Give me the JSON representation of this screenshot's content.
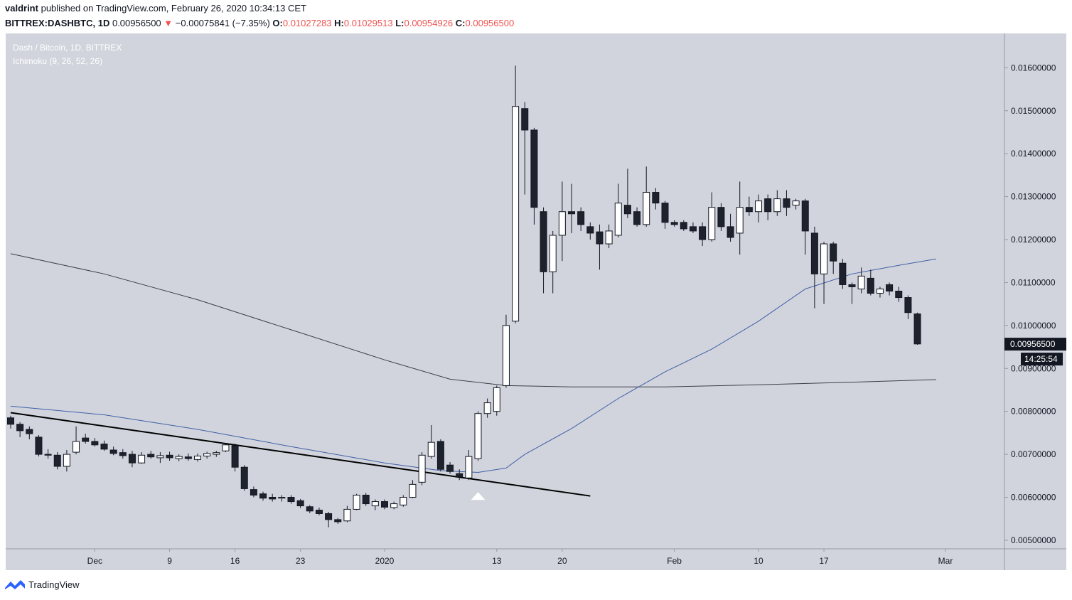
{
  "header": {
    "user": "valdrint",
    "published": "published on TradingView.com, February 26, 2020 10:34:13 CET"
  },
  "ohlc": {
    "symbol": "BITTREX:DASHBTC, 1D",
    "last": "0.00956500",
    "change": "−0.00075841 (−7.35%)",
    "o_label": "O:",
    "o": "0.01027283",
    "h_label": "H:",
    "h": "0.01029513",
    "l_label": "L:",
    "l": "0.00954926",
    "c_label": "C:",
    "c": "0.00956500"
  },
  "footer": {
    "brand": "TradingView",
    "logo_icon": "tradingview-logo-icon"
  },
  "colors": {
    "background": "#d1d4dc",
    "up_body": "#ffffff",
    "down_body": "#1e222d",
    "wick": "#131722",
    "ma_blue": "#3f5fa6",
    "ma_dark": "#3b3f48",
    "arrow": "#ffffff"
  },
  "chart_data": {
    "type": "candlestick",
    "title": "Dash / Bitcoin, 1D, BITTREX",
    "subtitle": "Ichimoku (9, 26, 52, 26)",
    "ylim": [
      0.0048,
      0.0168
    ],
    "y_ticks": [
      0.005,
      0.006,
      0.007,
      0.008,
      0.009,
      0.01,
      0.011,
      0.012,
      0.013,
      0.014,
      0.015,
      0.016
    ],
    "y_tick_labels": [
      "0.00500000",
      "0.00600000",
      "0.00700000",
      "0.00800000",
      "0.00900000",
      "0.01000000",
      "0.01100000",
      "0.01200000",
      "0.01300000",
      "0.01400000",
      "0.01500000",
      "0.01600000"
    ],
    "x_ticks": [
      {
        "label": "Dec",
        "day": 9
      },
      {
        "label": "9",
        "day": 17
      },
      {
        "label": "16",
        "day": 24
      },
      {
        "label": "23",
        "day": 31
      },
      {
        "label": "2020",
        "day": 40
      },
      {
        "label": "13",
        "day": 52
      },
      {
        "label": "20",
        "day": 59
      },
      {
        "label": "Feb",
        "day": 71
      },
      {
        "label": "10",
        "day": 80
      },
      {
        "label": "17",
        "day": 87
      },
      {
        "label": "Mar",
        "day": 100
      }
    ],
    "last_price_label": "0.00956500",
    "countdown_label": "14:25:54",
    "candles": [
      {
        "o": 0.00785,
        "h": 0.0079,
        "l": 0.0076,
        "c": 0.0077
      },
      {
        "o": 0.0077,
        "h": 0.00775,
        "l": 0.0074,
        "c": 0.00755
      },
      {
        "o": 0.00758,
        "h": 0.00765,
        "l": 0.00735,
        "c": 0.00748
      },
      {
        "o": 0.0074,
        "h": 0.00745,
        "l": 0.00695,
        "c": 0.007
      },
      {
        "o": 0.007,
        "h": 0.00712,
        "l": 0.0069,
        "c": 0.00698
      },
      {
        "o": 0.00698,
        "h": 0.00705,
        "l": 0.00665,
        "c": 0.00672
      },
      {
        "o": 0.00672,
        "h": 0.0071,
        "l": 0.0066,
        "c": 0.007
      },
      {
        "o": 0.00705,
        "h": 0.00765,
        "l": 0.007,
        "c": 0.0073
      },
      {
        "o": 0.00738,
        "h": 0.00748,
        "l": 0.00725,
        "c": 0.0073
      },
      {
        "o": 0.0073,
        "h": 0.00738,
        "l": 0.00718,
        "c": 0.00722
      },
      {
        "o": 0.00724,
        "h": 0.00732,
        "l": 0.00708,
        "c": 0.00712
      },
      {
        "o": 0.0071,
        "h": 0.00718,
        "l": 0.00698,
        "c": 0.00702
      },
      {
        "o": 0.00704,
        "h": 0.00712,
        "l": 0.0069,
        "c": 0.00697
      },
      {
        "o": 0.007,
        "h": 0.00708,
        "l": 0.0067,
        "c": 0.0068
      },
      {
        "o": 0.0068,
        "h": 0.00705,
        "l": 0.00678,
        "c": 0.00698
      },
      {
        "o": 0.007,
        "h": 0.00708,
        "l": 0.0069,
        "c": 0.00694
      },
      {
        "o": 0.00692,
        "h": 0.00705,
        "l": 0.0068,
        "c": 0.00697
      },
      {
        "o": 0.00698,
        "h": 0.00706,
        "l": 0.00685,
        "c": 0.00692
      },
      {
        "o": 0.0069,
        "h": 0.007,
        "l": 0.00684,
        "c": 0.00695
      },
      {
        "o": 0.00694,
        "h": 0.00702,
        "l": 0.00685,
        "c": 0.0069
      },
      {
        "o": 0.00688,
        "h": 0.00702,
        "l": 0.00683,
        "c": 0.00696
      },
      {
        "o": 0.00696,
        "h": 0.00706,
        "l": 0.0069,
        "c": 0.00702
      },
      {
        "o": 0.007,
        "h": 0.00708,
        "l": 0.00694,
        "c": 0.00704
      },
      {
        "o": 0.00708,
        "h": 0.00725,
        "l": 0.00705,
        "c": 0.00722
      },
      {
        "o": 0.0072,
        "h": 0.00725,
        "l": 0.0066,
        "c": 0.0067
      },
      {
        "o": 0.0067,
        "h": 0.00675,
        "l": 0.00615,
        "c": 0.0062
      },
      {
        "o": 0.00618,
        "h": 0.00625,
        "l": 0.006,
        "c": 0.00605
      },
      {
        "o": 0.00608,
        "h": 0.00613,
        "l": 0.00592,
        "c": 0.00598
      },
      {
        "o": 0.006,
        "h": 0.00608,
        "l": 0.0059,
        "c": 0.00596
      },
      {
        "o": 0.00598,
        "h": 0.00605,
        "l": 0.0059,
        "c": 0.006
      },
      {
        "o": 0.006,
        "h": 0.00605,
        "l": 0.00585,
        "c": 0.0059
      },
      {
        "o": 0.00592,
        "h": 0.00596,
        "l": 0.00575,
        "c": 0.0058
      },
      {
        "o": 0.00578,
        "h": 0.00582,
        "l": 0.00563,
        "c": 0.00568
      },
      {
        "o": 0.0057,
        "h": 0.00576,
        "l": 0.00558,
        "c": 0.00562
      },
      {
        "o": 0.00562,
        "h": 0.00566,
        "l": 0.0053,
        "c": 0.00548
      },
      {
        "o": 0.00548,
        "h": 0.00552,
        "l": 0.00538,
        "c": 0.00543
      },
      {
        "o": 0.00545,
        "h": 0.0058,
        "l": 0.00542,
        "c": 0.00572
      },
      {
        "o": 0.00572,
        "h": 0.00608,
        "l": 0.0057,
        "c": 0.00605
      },
      {
        "o": 0.00605,
        "h": 0.0061,
        "l": 0.0058,
        "c": 0.00585
      },
      {
        "o": 0.0058,
        "h": 0.00595,
        "l": 0.0057,
        "c": 0.0059
      },
      {
        "o": 0.0059,
        "h": 0.00595,
        "l": 0.00572,
        "c": 0.00577
      },
      {
        "o": 0.00576,
        "h": 0.0059,
        "l": 0.00572,
        "c": 0.00585
      },
      {
        "o": 0.00582,
        "h": 0.00605,
        "l": 0.00578,
        "c": 0.006
      },
      {
        "o": 0.006,
        "h": 0.0064,
        "l": 0.00598,
        "c": 0.0063
      },
      {
        "o": 0.00635,
        "h": 0.00705,
        "l": 0.00628,
        "c": 0.00698
      },
      {
        "o": 0.00695,
        "h": 0.00768,
        "l": 0.0069,
        "c": 0.00728
      },
      {
        "o": 0.0073,
        "h": 0.00735,
        "l": 0.0066,
        "c": 0.00665
      },
      {
        "o": 0.00675,
        "h": 0.00682,
        "l": 0.00655,
        "c": 0.0066
      },
      {
        "o": 0.00655,
        "h": 0.00665,
        "l": 0.0064,
        "c": 0.00648
      },
      {
        "o": 0.00645,
        "h": 0.0071,
        "l": 0.0064,
        "c": 0.00695
      },
      {
        "o": 0.0069,
        "h": 0.008,
        "l": 0.00685,
        "c": 0.00795
      },
      {
        "o": 0.00795,
        "h": 0.0083,
        "l": 0.00785,
        "c": 0.0082
      },
      {
        "o": 0.008,
        "h": 0.0086,
        "l": 0.0079,
        "c": 0.00855
      },
      {
        "o": 0.0086,
        "h": 0.01025,
        "l": 0.00855,
        "c": 0.01
      },
      {
        "o": 0.0101,
        "h": 0.01605,
        "l": 0.01005,
        "c": 0.0151
      },
      {
        "o": 0.01505,
        "h": 0.0152,
        "l": 0.01305,
        "c": 0.01455
      },
      {
        "o": 0.01455,
        "h": 0.0146,
        "l": 0.01235,
        "c": 0.01275
      },
      {
        "o": 0.01265,
        "h": 0.01275,
        "l": 0.01075,
        "c": 0.01125
      },
      {
        "o": 0.01125,
        "h": 0.0122,
        "l": 0.01075,
        "c": 0.0121
      },
      {
        "o": 0.0121,
        "h": 0.01335,
        "l": 0.0115,
        "c": 0.01265
      },
      {
        "o": 0.01265,
        "h": 0.0133,
        "l": 0.01215,
        "c": 0.0126
      },
      {
        "o": 0.01265,
        "h": 0.01275,
        "l": 0.0122,
        "c": 0.01235
      },
      {
        "o": 0.0123,
        "h": 0.0124,
        "l": 0.012,
        "c": 0.01215
      },
      {
        "o": 0.01218,
        "h": 0.01235,
        "l": 0.0113,
        "c": 0.0119
      },
      {
        "o": 0.0119,
        "h": 0.01235,
        "l": 0.0118,
        "c": 0.0122
      },
      {
        "o": 0.0121,
        "h": 0.0133,
        "l": 0.01205,
        "c": 0.01285
      },
      {
        "o": 0.0128,
        "h": 0.01365,
        "l": 0.0125,
        "c": 0.0126
      },
      {
        "o": 0.01265,
        "h": 0.01275,
        "l": 0.0123,
        "c": 0.01235
      },
      {
        "o": 0.01235,
        "h": 0.0137,
        "l": 0.0123,
        "c": 0.0131
      },
      {
        "o": 0.0131,
        "h": 0.0132,
        "l": 0.0127,
        "c": 0.01285
      },
      {
        "o": 0.01285,
        "h": 0.0129,
        "l": 0.01225,
        "c": 0.0124
      },
      {
        "o": 0.0124,
        "h": 0.01245,
        "l": 0.0123,
        "c": 0.01235
      },
      {
        "o": 0.0124,
        "h": 0.01245,
        "l": 0.0122,
        "c": 0.01225
      },
      {
        "o": 0.0123,
        "h": 0.0124,
        "l": 0.01215,
        "c": 0.0122
      },
      {
        "o": 0.0123,
        "h": 0.0124,
        "l": 0.01185,
        "c": 0.012
      },
      {
        "o": 0.012,
        "h": 0.0131,
        "l": 0.01195,
        "c": 0.01275
      },
      {
        "o": 0.01275,
        "h": 0.01285,
        "l": 0.0122,
        "c": 0.0123
      },
      {
        "o": 0.0123,
        "h": 0.0126,
        "l": 0.01195,
        "c": 0.01205
      },
      {
        "o": 0.01215,
        "h": 0.01335,
        "l": 0.01165,
        "c": 0.01275
      },
      {
        "o": 0.01275,
        "h": 0.013,
        "l": 0.01255,
        "c": 0.01265
      },
      {
        "o": 0.01265,
        "h": 0.01305,
        "l": 0.0124,
        "c": 0.0129
      },
      {
        "o": 0.01295,
        "h": 0.01305,
        "l": 0.01245,
        "c": 0.01265
      },
      {
        "o": 0.01265,
        "h": 0.01315,
        "l": 0.01255,
        "c": 0.01295
      },
      {
        "o": 0.01295,
        "h": 0.01315,
        "l": 0.01255,
        "c": 0.01275
      },
      {
        "o": 0.0128,
        "h": 0.01295,
        "l": 0.0127,
        "c": 0.0129
      },
      {
        "o": 0.0129,
        "h": 0.01295,
        "l": 0.01165,
        "c": 0.0122
      },
      {
        "o": 0.01215,
        "h": 0.0123,
        "l": 0.0104,
        "c": 0.0112
      },
      {
        "o": 0.0112,
        "h": 0.01195,
        "l": 0.0105,
        "c": 0.0119
      },
      {
        "o": 0.0119,
        "h": 0.01195,
        "l": 0.0112,
        "c": 0.0115
      },
      {
        "o": 0.01145,
        "h": 0.01155,
        "l": 0.01085,
        "c": 0.01095
      },
      {
        "o": 0.01095,
        "h": 0.011,
        "l": 0.0105,
        "c": 0.0109
      },
      {
        "o": 0.01085,
        "h": 0.01135,
        "l": 0.01075,
        "c": 0.01115
      },
      {
        "o": 0.0111,
        "h": 0.0113,
        "l": 0.0107,
        "c": 0.01075
      },
      {
        "o": 0.01075,
        "h": 0.0109,
        "l": 0.01065,
        "c": 0.01085
      },
      {
        "o": 0.01095,
        "h": 0.011,
        "l": 0.0107,
        "c": 0.0108
      },
      {
        "o": 0.0108,
        "h": 0.0109,
        "l": 0.01055,
        "c": 0.01065
      },
      {
        "o": 0.01065,
        "h": 0.0107,
        "l": 0.01015,
        "c": 0.0103
      },
      {
        "o": 0.01027,
        "h": 0.0103,
        "l": 0.00955,
        "c": 0.00957
      }
    ],
    "ma_blue": [
      [
        0,
        0.00812
      ],
      [
        10,
        0.00792
      ],
      [
        20,
        0.00758
      ],
      [
        30,
        0.00718
      ],
      [
        40,
        0.0068
      ],
      [
        46,
        0.00662
      ],
      [
        50,
        0.00658
      ],
      [
        53,
        0.00668
      ],
      [
        55,
        0.007
      ],
      [
        60,
        0.0076
      ],
      [
        65,
        0.0083
      ],
      [
        70,
        0.00892
      ],
      [
        75,
        0.00945
      ],
      [
        80,
        0.0101
      ],
      [
        85,
        0.01085
      ],
      [
        90,
        0.0112
      ],
      [
        95,
        0.0114
      ],
      [
        99,
        0.01155
      ]
    ],
    "ma_dark": [
      [
        0,
        0.01167
      ],
      [
        10,
        0.0112
      ],
      [
        20,
        0.0106
      ],
      [
        30,
        0.0099
      ],
      [
        40,
        0.0092
      ],
      [
        47,
        0.00875
      ],
      [
        53,
        0.0086
      ],
      [
        60,
        0.00857
      ],
      [
        70,
        0.00857
      ],
      [
        80,
        0.00862
      ],
      [
        90,
        0.00868
      ],
      [
        99,
        0.00874
      ]
    ],
    "trendline": [
      [
        0,
        0.00797
      ],
      [
        62,
        0.00603
      ]
    ],
    "signal_arrow_day": 50,
    "signal_arrow_price": 0.00612
  }
}
